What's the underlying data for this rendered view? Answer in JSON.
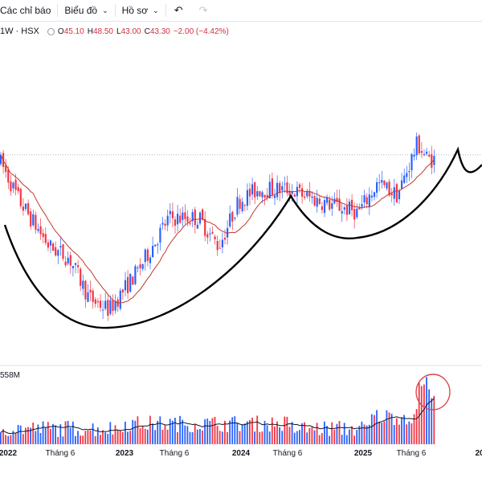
{
  "toolbar": {
    "indicators_label": "Các chỉ báo",
    "chart_label": "Biểu đồ",
    "profile_label": "Hồ sơ",
    "undo_icon": "undo-icon",
    "redo_icon": "redo-icon"
  },
  "legend": {
    "symbol": "1W · HSX",
    "open_key": "O",
    "open": "45.10",
    "high_key": "H",
    "high": "48.50",
    "low_key": "L",
    "low": "43.00",
    "close_key": "C",
    "close": "43.30",
    "change": "−2.00 (−4.42%)"
  },
  "colors": {
    "up": "#2962ff",
    "down": "#f23645",
    "ma": "#c0392b",
    "annotation": "#000000",
    "circle": "#d94a4a"
  },
  "volume": {
    "label": "558M"
  },
  "x_axis": {
    "labels": [
      "2022",
      "Tháng 6",
      "2023",
      "Tháng 6",
      "2024",
      "Tháng 6",
      "2025",
      "Tháng 6",
      "20"
    ],
    "year_flags": [
      true,
      false,
      true,
      false,
      true,
      false,
      true,
      false,
      true
    ]
  },
  "chart_data": {
    "type": "candlestick",
    "interval": "1W",
    "last": {
      "open": 45.1,
      "high": 48.5,
      "low": 43.0,
      "close": 43.3,
      "change": -2.0,
      "change_pct": -4.42
    },
    "price_trend": [
      {
        "date": "2022-01",
        "close": 43
      },
      {
        "date": "2022-03",
        "close": 36
      },
      {
        "date": "2022-06",
        "close": 28
      },
      {
        "date": "2022-08",
        "close": 26
      },
      {
        "date": "2022-10",
        "close": 19
      },
      {
        "date": "2022-12",
        "close": 17
      },
      {
        "date": "2023-03",
        "close": 24
      },
      {
        "date": "2023-06",
        "close": 33
      },
      {
        "date": "2023-09",
        "close": 33
      },
      {
        "date": "2023-11",
        "close": 28
      },
      {
        "date": "2024-01",
        "close": 36
      },
      {
        "date": "2024-03",
        "close": 38
      },
      {
        "date": "2024-06",
        "close": 38
      },
      {
        "date": "2024-09",
        "close": 36
      },
      {
        "date": "2025-01",
        "close": 34
      },
      {
        "date": "2025-03",
        "close": 39
      },
      {
        "date": "2025-05",
        "close": 37
      },
      {
        "date": "2025-07",
        "close": 46
      },
      {
        "date": "2025-08",
        "close": 43.3
      }
    ],
    "reference_level": 44,
    "annotations": [
      "cup-and-handle curve",
      "volume spike circle"
    ]
  }
}
